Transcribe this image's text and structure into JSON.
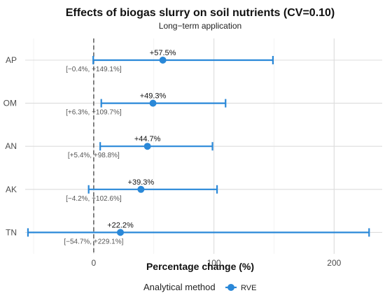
{
  "chart_data": {
    "type": "forest",
    "title": "Effects of biogas slurry on soil nutrients (CV=0.10)",
    "subtitle": "Long−term application",
    "xlabel": "Percentage change (%)",
    "ylabel": "",
    "xlim": [
      -57,
      240
    ],
    "xticks": [
      0,
      100,
      200
    ],
    "reference_line": 0,
    "grid": true,
    "categories": [
      "AP",
      "OM",
      "AN",
      "AK",
      "TN"
    ],
    "series": [
      {
        "name": "RVE",
        "color": "#2a88d8",
        "values": [
          57.5,
          49.3,
          44.7,
          39.3,
          22.2
        ],
        "lower": [
          -0.4,
          6.3,
          5.4,
          -4.2,
          -54.7
        ],
        "upper": [
          149.1,
          109.7,
          98.8,
          102.6,
          229.1
        ],
        "point_labels": [
          "+57.5%",
          "+49.3%",
          "+44.7%",
          "+39.3%",
          "+22.2%"
        ],
        "ci_labels": [
          "[−0.4%, +149.1%]",
          "[+6.3%, +109.7%]",
          "[+5.4%, +98.8%]",
          "[−4.2%, +102.6%]",
          "[−54.7%, +229.1%]"
        ]
      }
    ],
    "legend": {
      "title": "Analytical method",
      "position": "bottom",
      "entries": [
        "RVE"
      ]
    }
  }
}
